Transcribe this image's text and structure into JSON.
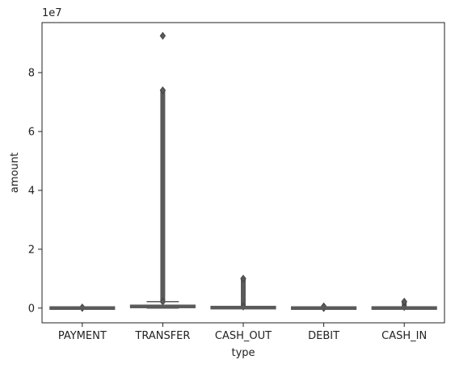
{
  "chart_data": {
    "type": "box",
    "xlabel": "type",
    "ylabel": "amount",
    "y_multiplier_label": "1e7",
    "y_unit_scale": 10000000,
    "ylim": [
      -0.5,
      9.7
    ],
    "yticks": [
      0,
      2,
      4,
      6,
      8
    ],
    "yticks_labels": [
      "0",
      "2",
      "4",
      "6",
      "8"
    ],
    "categories": [
      "PAYMENT",
      "TRANSFER",
      "CASH_OUT",
      "DEBIT",
      "CASH_IN"
    ],
    "series": [
      {
        "category": "PAYMENT",
        "q1": 0.0004,
        "median": 0.0009,
        "q3": 0.0015,
        "whisker_low": 0.0,
        "whisker_high": 0.0032,
        "outliers_min": 0.004,
        "outliers_max": 0.024
      },
      {
        "category": "TRANSFER",
        "q1": 0.022,
        "median": 0.049,
        "q3": 0.092,
        "whisker_low": 0.0,
        "whisker_high": 0.22,
        "outliers_min": 0.22,
        "outliers_max": 7.4,
        "max_outlier": 9.25
      },
      {
        "category": "CASH_OUT",
        "q1": 0.007,
        "median": 0.015,
        "q3": 0.025,
        "whisker_low": 0.0,
        "whisker_high": 0.05,
        "outliers_min": 0.05,
        "outliers_max": 1.0
      },
      {
        "category": "DEBIT",
        "q1": 0.0002,
        "median": 0.0003,
        "q3": 0.0006,
        "whisker_low": 0.0,
        "whisker_high": 0.001,
        "outliers_min": 0.001,
        "outliers_max": 0.06
      },
      {
        "category": "CASH_IN",
        "q1": 0.0012,
        "median": 0.0014,
        "q3": 0.0021,
        "whisker_low": 0.0,
        "whisker_high": 0.035,
        "outliers_min": 0.035,
        "outliers_max": 0.22
      }
    ],
    "box_color": "#5a5a5a",
    "grid": false
  }
}
